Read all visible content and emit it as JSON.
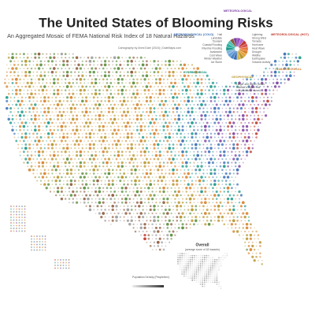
{
  "header": {
    "title": "The United States of Blooming Risks",
    "subtitle": "An Aggregated Mosaic of FEMA National Risk Index of 18 Natural Hazards",
    "credit": "Cartography by Ahmi Dale (2024) | DaleMaps.com"
  },
  "legend": {
    "categories": [
      "METEOROLOGICAL",
      "METEOROLOGICAL (COLD)",
      "METEOROLOGICAL (HOT)",
      "HYDROLOGICAL",
      "CLIMATOLOGICAL",
      "GEOPHYSICAL"
    ],
    "hazards": [
      "Ice Storm",
      "Winter Weather",
      "Cold Wave",
      "Avalanche",
      "Riverine Flooding",
      "Coastal Flooding",
      "Tsunami",
      "Landslide",
      "Hail",
      "Lightning",
      "Strong Wind",
      "Tornado",
      "Hurricane",
      "Heat Wave",
      "Drought",
      "Wildfire",
      "Earthquake",
      "Volcanic Activity"
    ],
    "note": [
      "Larger and darker petals",
      "indicate a higher risk",
      "in a particular hazard."
    ]
  },
  "insets": {
    "overall_title": "Overall",
    "overall_subtitle": "(average score of 18 hazards)",
    "density_title": "Population Density (People/km²)"
  }
}
